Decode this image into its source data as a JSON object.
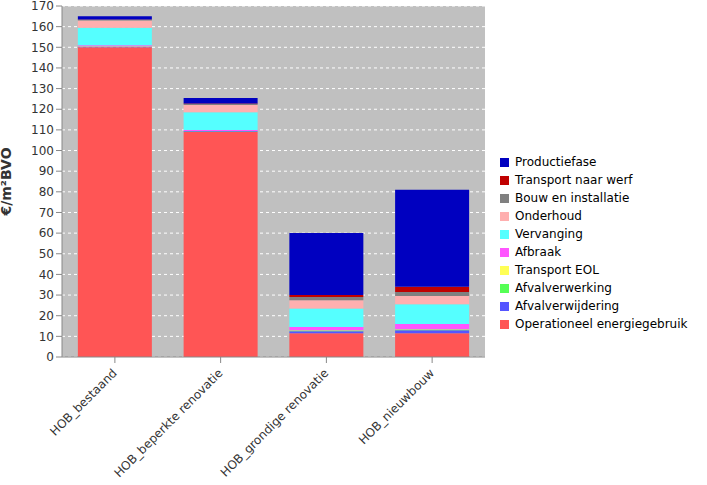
{
  "chart_data": {
    "type": "bar",
    "stacked": true,
    "grid": true,
    "legend": "right",
    "y_label": "€/m²BVO",
    "categories": [
      "HOB_bestaand",
      "HOB_beperkte renovatie",
      "HOB_grondige renovatie",
      "HOB_nieuwbouw"
    ],
    "ylim": [
      0,
      170
    ],
    "yticks": [
      0,
      10,
      20,
      30,
      40,
      50,
      60,
      70,
      80,
      90,
      100,
      110,
      120,
      130,
      140,
      150,
      160,
      170
    ],
    "series": [
      {
        "name": "Operationeel energiegebruik",
        "color": "#ff5555",
        "values": [
          150,
          109,
          11.5,
          11.5
        ]
      },
      {
        "name": "Afvalverwijdering",
        "color": "#5555ff",
        "values": [
          0.3,
          0.3,
          1,
          1.5
        ]
      },
      {
        "name": "Afvalverwerking",
        "color": "#55ff55",
        "values": [
          0.1,
          0.1,
          0.3,
          0.3
        ]
      },
      {
        "name": "Transport EOL",
        "color": "#ffff55",
        "values": [
          0.1,
          0.1,
          0.2,
          0.2
        ]
      },
      {
        "name": "Afbraak",
        "color": "#ff55ff",
        "values": [
          0.5,
          0.5,
          1.5,
          2.5
        ]
      },
      {
        "name": "Vervanging",
        "color": "#55ffff",
        "values": [
          8.5,
          8.5,
          9,
          9.5
        ]
      },
      {
        "name": "Onderhoud",
        "color": "#ffafaf",
        "values": [
          3.5,
          3.5,
          4,
          4
        ]
      },
      {
        "name": "Bouw en installatie",
        "color": "#808080",
        "values": [
          0.3,
          0.5,
          1.5,
          2
        ]
      },
      {
        "name": "Transport naar werf",
        "color": "#c00000",
        "values": [
          0.2,
          0.3,
          1,
          2.5
        ]
      },
      {
        "name": "Productiefase",
        "color": "#0000c0",
        "values": [
          1.5,
          2.7,
          30,
          47
        ]
      }
    ]
  }
}
